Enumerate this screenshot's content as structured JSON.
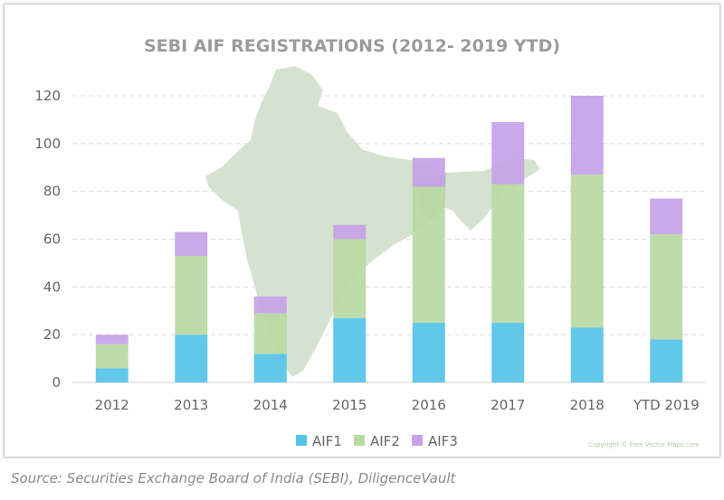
{
  "chart_data": {
    "type": "bar",
    "stacked": true,
    "title": "SEBI AIF REGISTRATIONS (2012- 2019 YTD)",
    "categories": [
      "2012",
      "2013",
      "2014",
      "2015",
      "2016",
      "2017",
      "2018",
      "YTD 2019"
    ],
    "series": [
      {
        "name": "AIF1",
        "color": "#56c2e8",
        "values": [
          6,
          20,
          12,
          27,
          25,
          25,
          23,
          18
        ]
      },
      {
        "name": "AIF2",
        "color": "#b9d9a3",
        "values": [
          10,
          33,
          17,
          33,
          57,
          58,
          64,
          44
        ]
      },
      {
        "name": "AIF3",
        "color": "#c6a2e8",
        "values": [
          4,
          10,
          7,
          6,
          12,
          26,
          33,
          15
        ]
      }
    ],
    "ylim": [
      0,
      120
    ],
    "yticks": [
      0,
      20,
      40,
      60,
      80,
      100,
      120
    ],
    "grid": true,
    "legend": "bottom"
  },
  "watermark_text": "Copyright © Free Vector Maps.com",
  "source_note": "Source: Securities Exchange Board of India (SEBI), DiligenceVault"
}
